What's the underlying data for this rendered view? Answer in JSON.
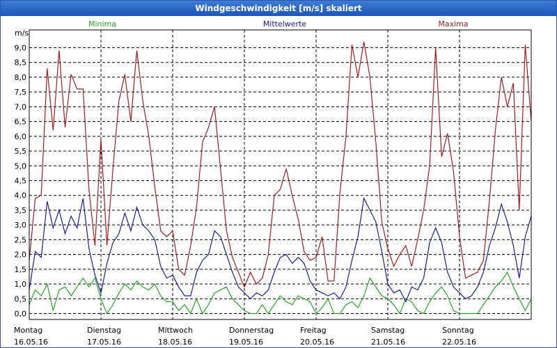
{
  "window": {
    "title": "Windgeschwindigkeit [m/s] skaliert"
  },
  "chart_data": {
    "type": "line",
    "title": "Windgeschwindigkeit [m/s] skaliert",
    "ylabel": "m/s",
    "ylim": [
      -0.2,
      9.6
    ],
    "yticks": [
      "0,0",
      "0,5",
      "1,0",
      "1,5",
      "2,0",
      "2,5",
      "3,0",
      "3,5",
      "4,0",
      "4,5",
      "5,0",
      "5,5",
      "6,0",
      "6,5",
      "7,0",
      "7,5",
      "8,0",
      "8,5",
      "9,0"
    ],
    "x_day_labels": [
      {
        "day": "Montag",
        "date": "16.05.16"
      },
      {
        "day": "Dienstag",
        "date": "17.05.16"
      },
      {
        "day": "Mittwoch",
        "date": "18.05.16"
      },
      {
        "day": "Donnerstag",
        "date": "19.05.16"
      },
      {
        "day": "Freitag",
        "date": "20.05.16"
      },
      {
        "day": "Samstag",
        "date": "21.05.16"
      },
      {
        "day": "Sonntag",
        "date": "22.05.16"
      }
    ],
    "x_unit": "hours since 16.05.16 00:00",
    "xlim": [
      0,
      168
    ],
    "grid": true,
    "legend": "top",
    "series": [
      {
        "name": "Minima",
        "color": "#22aa22",
        "x": [
          0,
          2,
          4,
          6,
          8,
          10,
          12,
          14,
          16,
          18,
          20,
          22,
          24,
          26,
          28,
          30,
          32,
          34,
          36,
          38,
          40,
          42,
          44,
          46,
          48,
          50,
          52,
          54,
          56,
          58,
          60,
          62,
          64,
          66,
          68,
          70,
          72,
          74,
          76,
          78,
          80,
          82,
          84,
          86,
          88,
          90,
          92,
          94,
          96,
          98,
          100,
          102,
          104,
          106,
          108,
          110,
          112,
          114,
          116,
          118,
          120,
          122,
          124,
          126,
          128,
          130,
          132,
          134,
          136,
          138,
          140,
          142,
          144,
          146,
          148,
          150,
          152,
          154,
          156,
          158,
          160,
          162,
          164,
          166,
          168
        ],
        "values": [
          0.3,
          0.8,
          0.6,
          1.0,
          0.1,
          0.8,
          0.9,
          0.6,
          0.9,
          1.2,
          0.9,
          1.2,
          0.5,
          0.0,
          0.3,
          0.7,
          1.0,
          0.8,
          1.1,
          0.9,
          0.8,
          1.0,
          0.6,
          0.4,
          0.4,
          0.1,
          0.3,
          0.0,
          0.5,
          0.0,
          0.3,
          0.7,
          0.8,
          0.9,
          0.5,
          0.3,
          0.1,
          0.0,
          0.0,
          0.3,
          0.0,
          0.3,
          0.6,
          0.4,
          0.3,
          0.6,
          0.5,
          0.4,
          0.0,
          0.2,
          0.5,
          0.0,
          0.0,
          0.3,
          0.4,
          0.2,
          0.6,
          1.2,
          0.9,
          0.6,
          0.5,
          0.3,
          0.0,
          0.5,
          0.4,
          0.1,
          0.0,
          0.4,
          0.7,
          0.9,
          0.6,
          0.1,
          0.0,
          0.0,
          0.0,
          0.0,
          0.3,
          0.6,
          0.9,
          1.1,
          1.4,
          0.9,
          0.5,
          0.1,
          0.5
        ]
      },
      {
        "name": "Mittelwerte",
        "color": "#1a1aaa",
        "x": [
          0,
          2,
          4,
          6,
          8,
          10,
          12,
          14,
          16,
          18,
          20,
          22,
          24,
          26,
          28,
          30,
          32,
          34,
          36,
          38,
          40,
          42,
          44,
          46,
          48,
          50,
          52,
          54,
          56,
          58,
          60,
          62,
          64,
          66,
          68,
          70,
          72,
          74,
          76,
          78,
          80,
          82,
          84,
          86,
          88,
          90,
          92,
          94,
          96,
          98,
          100,
          102,
          104,
          106,
          108,
          110,
          112,
          114,
          116,
          118,
          120,
          122,
          124,
          126,
          128,
          130,
          132,
          134,
          136,
          138,
          140,
          142,
          144,
          146,
          148,
          150,
          152,
          154,
          156,
          158,
          160,
          162,
          164,
          166,
          168
        ],
        "values": [
          0.8,
          2.1,
          1.9,
          3.8,
          2.9,
          3.5,
          2.7,
          3.3,
          2.9,
          3.9,
          2.2,
          1.3,
          0.7,
          1.7,
          2.4,
          2.7,
          3.4,
          2.8,
          3.6,
          3.0,
          2.8,
          2.5,
          1.6,
          1.2,
          1.3,
          0.9,
          0.6,
          0.6,
          1.4,
          1.8,
          2.0,
          2.8,
          2.6,
          2.0,
          1.4,
          0.9,
          0.7,
          0.5,
          0.7,
          0.6,
          0.8,
          1.4,
          1.9,
          2.0,
          1.7,
          1.9,
          1.7,
          1.1,
          0.8,
          0.7,
          0.6,
          0.7,
          0.5,
          0.9,
          1.8,
          2.6,
          3.9,
          3.5,
          3.1,
          2.1,
          1.0,
          0.7,
          0.8,
          0.4,
          0.9,
          0.8,
          1.2,
          2.4,
          2.9,
          2.4,
          1.4,
          0.9,
          0.7,
          0.5,
          0.6,
          0.9,
          1.4,
          2.3,
          2.9,
          3.7,
          3.1,
          2.3,
          1.2,
          2.6,
          3.3
        ]
      },
      {
        "name": "Maxima",
        "color": "#aa1a1a",
        "x": [
          0,
          2,
          4,
          6,
          8,
          10,
          12,
          14,
          16,
          18,
          20,
          22,
          24,
          26,
          28,
          30,
          32,
          34,
          36,
          38,
          40,
          42,
          44,
          46,
          48,
          50,
          52,
          54,
          56,
          58,
          60,
          62,
          64,
          66,
          68,
          70,
          72,
          74,
          76,
          78,
          80,
          82,
          84,
          86,
          88,
          90,
          92,
          94,
          96,
          98,
          100,
          102,
          104,
          106,
          108,
          110,
          112,
          114,
          116,
          118,
          120,
          122,
          124,
          126,
          128,
          130,
          132,
          134,
          136,
          138,
          140,
          142,
          144,
          146,
          148,
          150,
          152,
          154,
          156,
          158,
          160,
          162,
          164,
          166,
          168
        ],
        "values": [
          1.8,
          3.9,
          4.0,
          8.3,
          6.2,
          8.9,
          6.3,
          8.1,
          7.6,
          7.6,
          4.2,
          2.3,
          5.9,
          2.3,
          4.9,
          7.2,
          8.1,
          6.5,
          8.9,
          7.2,
          6.0,
          4.3,
          2.8,
          2.6,
          2.8,
          1.5,
          1.3,
          2.3,
          3.6,
          5.8,
          6.3,
          7.0,
          4.9,
          2.8,
          1.9,
          1.4,
          0.9,
          1.4,
          1.0,
          1.2,
          2.0,
          4.0,
          4.2,
          4.9,
          4.0,
          3.2,
          2.1,
          1.8,
          1.9,
          2.6,
          1.1,
          1.1,
          4.1,
          6.0,
          9.1,
          8.0,
          9.2,
          8.0,
          5.8,
          3.1,
          2.2,
          1.6,
          2.0,
          2.3,
          1.6,
          2.5,
          3.5,
          5.0,
          9.0,
          5.3,
          6.1,
          4.8,
          2.6,
          1.2,
          1.3,
          1.4,
          1.8,
          3.8,
          6.2,
          8.0,
          7.0,
          7.8,
          3.5,
          9.1,
          6.5
        ]
      }
    ]
  }
}
